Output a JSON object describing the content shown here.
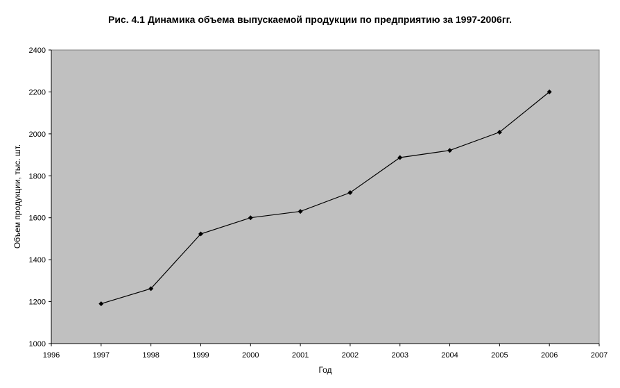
{
  "chart_data": {
    "type": "line",
    "title": "Рис. 4.1 Динамика объема выпускаемой продукции по предприятию за 1997-2006гг.",
    "xlabel": "Год",
    "ylabel": "Объем продукции, тыс. шт.",
    "xlim": [
      1996,
      2007
    ],
    "ylim": [
      1000,
      2400
    ],
    "x_ticks": [
      1996,
      1997,
      1998,
      1999,
      2000,
      2001,
      2002,
      2003,
      2004,
      2005,
      2006,
      2007
    ],
    "y_ticks": [
      1000,
      1200,
      1400,
      1600,
      1800,
      2000,
      2200,
      2400
    ],
    "grid": false,
    "legend": "none",
    "plot_background": "#c0c0c0",
    "line_color": "#000000",
    "marker": "diamond",
    "series": [
      {
        "x": [
          1997,
          1998,
          1999,
          2000,
          2001,
          2002,
          2003,
          2004,
          2005,
          2006
        ],
        "values": [
          1190,
          1262,
          1523,
          1600,
          1630,
          1720,
          1887,
          1921,
          2008,
          2200
        ]
      }
    ]
  }
}
